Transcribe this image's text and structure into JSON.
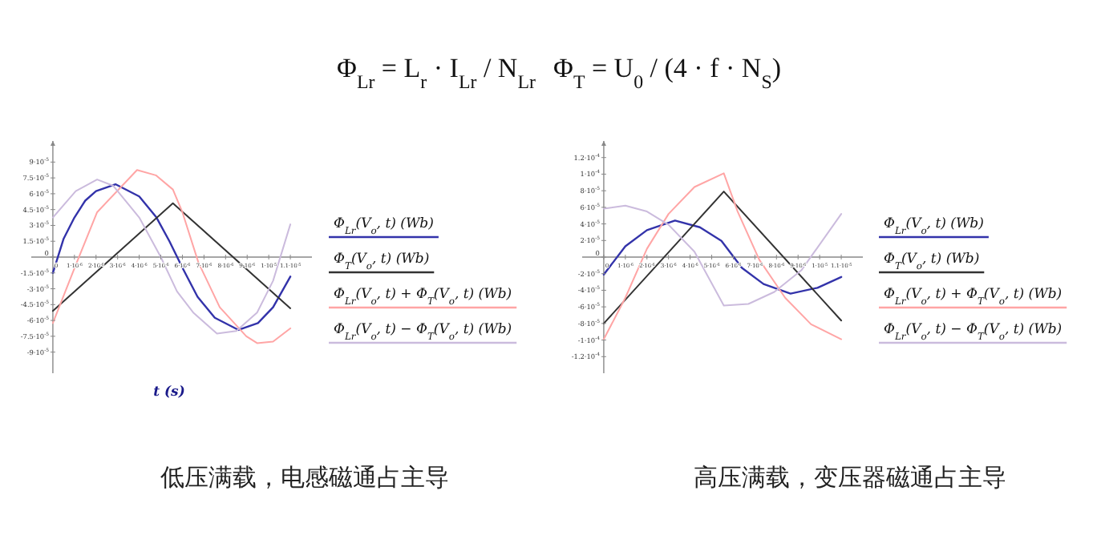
{
  "chart_data": [
    {
      "type": "line",
      "title": "低压满载，电感磁通占主导",
      "xlabel": "t (s)",
      "legend": "right",
      "annotations": [
        "Φ$_{Lr}$ = L$_{r}$ · I$_{Lr}$ / N$_{Lr}$",
        "Φ$_{T}$ = U$_{0}$ / (4 · f · N$_{S}$)"
      ],
      "xlim": [
        -1e-06,
        1.2e-05
      ],
      "ylim": [
        -0.00011,
        0.00011
      ],
      "xticks": [
        {
          "value": 0,
          "label": "0"
        },
        {
          "value": 1e-06,
          "label": "1·10$^{-6}$"
        },
        {
          "value": 2e-06,
          "label": "2·10$^{-6}$"
        },
        {
          "value": 3e-06,
          "label": "3·10$^{-6}$"
        },
        {
          "value": 4e-06,
          "label": "4·10$^{-6}$"
        },
        {
          "value": 5e-06,
          "label": "5·10$^{-6}$"
        },
        {
          "value": 6e-06,
          "label": "6·10$^{-6}$"
        },
        {
          "value": 7e-06,
          "label": "7·10$^{-6}$"
        },
        {
          "value": 8e-06,
          "label": "8·10$^{-6}$"
        },
        {
          "value": 9e-06,
          "label": "9·10$^{-6}$"
        },
        {
          "value": 1e-05,
          "label": "1·10$^{-5}$"
        },
        {
          "value": 1.1e-05,
          "label": "1.1·10$^{-5}$"
        }
      ],
      "yticks": [
        {
          "value": 9e-05,
          "label": "9·10$^{-5}$"
        },
        {
          "value": 7.5e-05,
          "label": "7.5·10$^{-5}$"
        },
        {
          "value": 6e-05,
          "label": "6·10$^{-5}$"
        },
        {
          "value": 4.5e-05,
          "label": "4.5·10$^{-5}$"
        },
        {
          "value": 3e-05,
          "label": "3·10$^{-5}$"
        },
        {
          "value": 1.5e-05,
          "label": "1.5·10$^{-5}$"
        },
        {
          "value": 0,
          "label": "0"
        },
        {
          "value": -1.5e-05,
          "label": "-1.5·10$^{-5}$"
        },
        {
          "value": -3e-05,
          "label": "-3·10$^{-5}$"
        },
        {
          "value": -4.5e-05,
          "label": "-4.5·10$^{-5}$"
        },
        {
          "value": -6e-05,
          "label": "-6·10$^{-5}$"
        },
        {
          "value": -7.5e-05,
          "label": "-7.5·10$^{-5}$"
        },
        {
          "value": -9e-05,
          "label": "-9·10$^{-5}$"
        }
      ],
      "series": [
        {
          "name": "Φ$_{Lr}$(V$_{o}$, t)  (Wb)",
          "color": "#3333aa",
          "x": [
            0,
            5e-07,
            1e-06,
            1.5e-06,
            2e-06,
            2.9e-06,
            4e-06,
            4.8e-06,
            5.4e-06,
            6e-06,
            6.7e-06,
            7.5e-06,
            8.6e-06,
            9.5e-06,
            1.02e-05,
            1.1e-05
          ],
          "values": [
            -1.5e-05,
            1.75e-05,
            3.75e-05,
            5.35e-05,
            6.25e-05,
            6.9e-05,
            5.75e-05,
            3.75e-05,
            1.5e-05,
            -1e-05,
            -3.75e-05,
            -5.75e-05,
            -6.9e-05,
            -6.25e-05,
            -4.75e-05,
            -1.85e-05
          ]
        },
        {
          "name": "Φ$_{T}$(V$_{o}$, t)  (Wb)",
          "color": "#333333",
          "x": [
            0,
            5.56e-06,
            1.1e-05
          ],
          "values": [
            -5.1e-05,
            5.1e-05,
            -4.85e-05
          ]
        },
        {
          "name": "Φ$_{Lr}$(V$_{o}$, t) + Φ$_{T}$(V$_{o}$, t)  (Wb)",
          "color": "#ffa5a5",
          "x": [
            0,
            1.06e-06,
            2.05e-06,
            3.9e-06,
            4.77e-06,
            5.56e-06,
            6e-06,
            6.74e-06,
            7.73e-06,
            8.96e-06,
            9.46e-06,
            1.02e-05,
            1.1e-05
          ],
          "values": [
            -6.25e-05,
            -7.5e-06,
            4.25e-05,
            8.25e-05,
            7.75e-05,
            6.4e-05,
            4.25e-05,
            -5e-06,
            -4.75e-05,
            -7.5e-05,
            -8.15e-05,
            -8e-05,
            -6.75e-05
          ]
        },
        {
          "name": "Φ$_{Lr}$(V$_{o}$, t) − Φ$_{T}$(V$_{o}$, t)  (Wb)",
          "color": "#cbbbdd",
          "x": [
            0,
            1.06e-06,
            2.05e-06,
            2.8e-06,
            4e-06,
            5e-06,
            5.75e-06,
            6.5e-06,
            7.6e-06,
            8.5e-06,
            9.46e-06,
            1.02e-05,
            1.1e-05
          ],
          "values": [
            3.75e-05,
            6.25e-05,
            7.35e-05,
            6.75e-05,
            3.75e-05,
            0,
            -3.25e-05,
            -5.25e-05,
            -7.25e-05,
            -7e-05,
            -5.25e-05,
            -2.25e-05,
            3.1e-05
          ]
        }
      ]
    },
    {
      "type": "line",
      "title": "高压满载，变压器磁通占主导",
      "legend": "right",
      "xlim": [
        -1e-06,
        1.2e-05
      ],
      "ylim": [
        -0.00014,
        0.00014
      ],
      "xticks": [
        {
          "value": 0,
          "label": "0"
        },
        {
          "value": 1e-06,
          "label": "1·10$^{-6}$"
        },
        {
          "value": 2e-06,
          "label": "2·10$^{-6}$"
        },
        {
          "value": 3e-06,
          "label": "3·10$^{-6}$"
        },
        {
          "value": 4e-06,
          "label": "4·10$^{-6}$"
        },
        {
          "value": 5e-06,
          "label": "5·10$^{-6}$"
        },
        {
          "value": 6e-06,
          "label": "6·10$^{-6}$"
        },
        {
          "value": 7e-06,
          "label": "7·10$^{-6}$"
        },
        {
          "value": 8e-06,
          "label": "8·10$^{-6}$"
        },
        {
          "value": 9e-06,
          "label": "9·10$^{-6}$"
        },
        {
          "value": 1e-05,
          "label": "1·10$^{-5}$"
        },
        {
          "value": 1.1e-05,
          "label": "1.1·10$^{-5}$"
        }
      ],
      "yticks": [
        {
          "value": 0.00012,
          "label": "1.2·10$^{-4}$"
        },
        {
          "value": 0.0001,
          "label": "1·10$^{-4}$"
        },
        {
          "value": 8e-05,
          "label": "8·10$^{-5}$"
        },
        {
          "value": 6e-05,
          "label": "6·10$^{-5}$"
        },
        {
          "value": 4e-05,
          "label": "4·10$^{-5}$"
        },
        {
          "value": 2e-05,
          "label": "2·10$^{-5}$"
        },
        {
          "value": 0,
          "label": "0"
        },
        {
          "value": -2e-05,
          "label": "-2·10$^{-5}$"
        },
        {
          "value": -4e-05,
          "label": "-4·10$^{-5}$"
        },
        {
          "value": -6e-05,
          "label": "-6·10$^{-5}$"
        },
        {
          "value": -8e-05,
          "label": "-8·10$^{-5}$"
        },
        {
          "value": -0.0001,
          "label": "-1·10$^{-4}$"
        },
        {
          "value": -0.00012,
          "label": "-1.2·10$^{-4}$"
        }
      ],
      "series": [
        {
          "name": "Φ$_{Lr}$(V$_{o}$, t)  (Wb)",
          "color": "#3333aa",
          "x": [
            0,
            1e-06,
            2e-06,
            3.3e-06,
            4.45e-06,
            5.45e-06,
            6.4e-06,
            7.4e-06,
            8.65e-06,
            9.9e-06,
            1.1e-05
          ],
          "values": [
            -2.1e-05,
            1.3e-05,
            3.25e-05,
            4.4e-05,
            3.6e-05,
            1.95e-05,
            -1.3e-05,
            -3.25e-05,
            -4.4e-05,
            -3.7e-05,
            -2.4e-05
          ]
        },
        {
          "name": "Φ$_{T}$(V$_{o}$, t)  (Wb)",
          "color": "#333333",
          "x": [
            0,
            5.56e-06,
            1.1e-05
          ],
          "values": [
            -8e-05,
            7.9e-05,
            -7.65e-05
          ]
        },
        {
          "name": "Φ$_{Lr}$(V$_{o}$, t) + Φ$_{T}$(V$_{o}$, t)  (Wb)",
          "color": "#ffa5a5",
          "x": [
            0,
            1e-06,
            2e-06,
            3e-06,
            4.2e-06,
            5.56e-06,
            6.2e-06,
            7.2e-06,
            8.4e-06,
            9.6e-06,
            1.1e-05
          ],
          "values": [
            -9.9e-05,
            -4.9e-05,
            1e-05,
            5.2e-05,
            8.45e-05,
            0.000101,
            5.5e-05,
            -3e-06,
            -4.9e-05,
            -8.1e-05,
            -9.9e-05
          ]
        },
        {
          "name": "Φ$_{Lr}$(V$_{o}$, t) − Φ$_{T}$(V$_{o}$, t)  (Wb)",
          "color": "#cbbbdd",
          "x": [
            0,
            1e-06,
            2e-06,
            3e-06,
            4.2e-06,
            5.56e-06,
            6.7e-06,
            7.9e-06,
            9.15e-06,
            1.1e-05
          ],
          "values": [
            5.85e-05,
            6.2e-05,
            5.5e-05,
            3.9e-05,
            6.5e-06,
            -5.85e-05,
            -5.65e-05,
            -4.2e-05,
            -1.6e-05,
            5.2e-05
          ]
        }
      ]
    }
  ]
}
